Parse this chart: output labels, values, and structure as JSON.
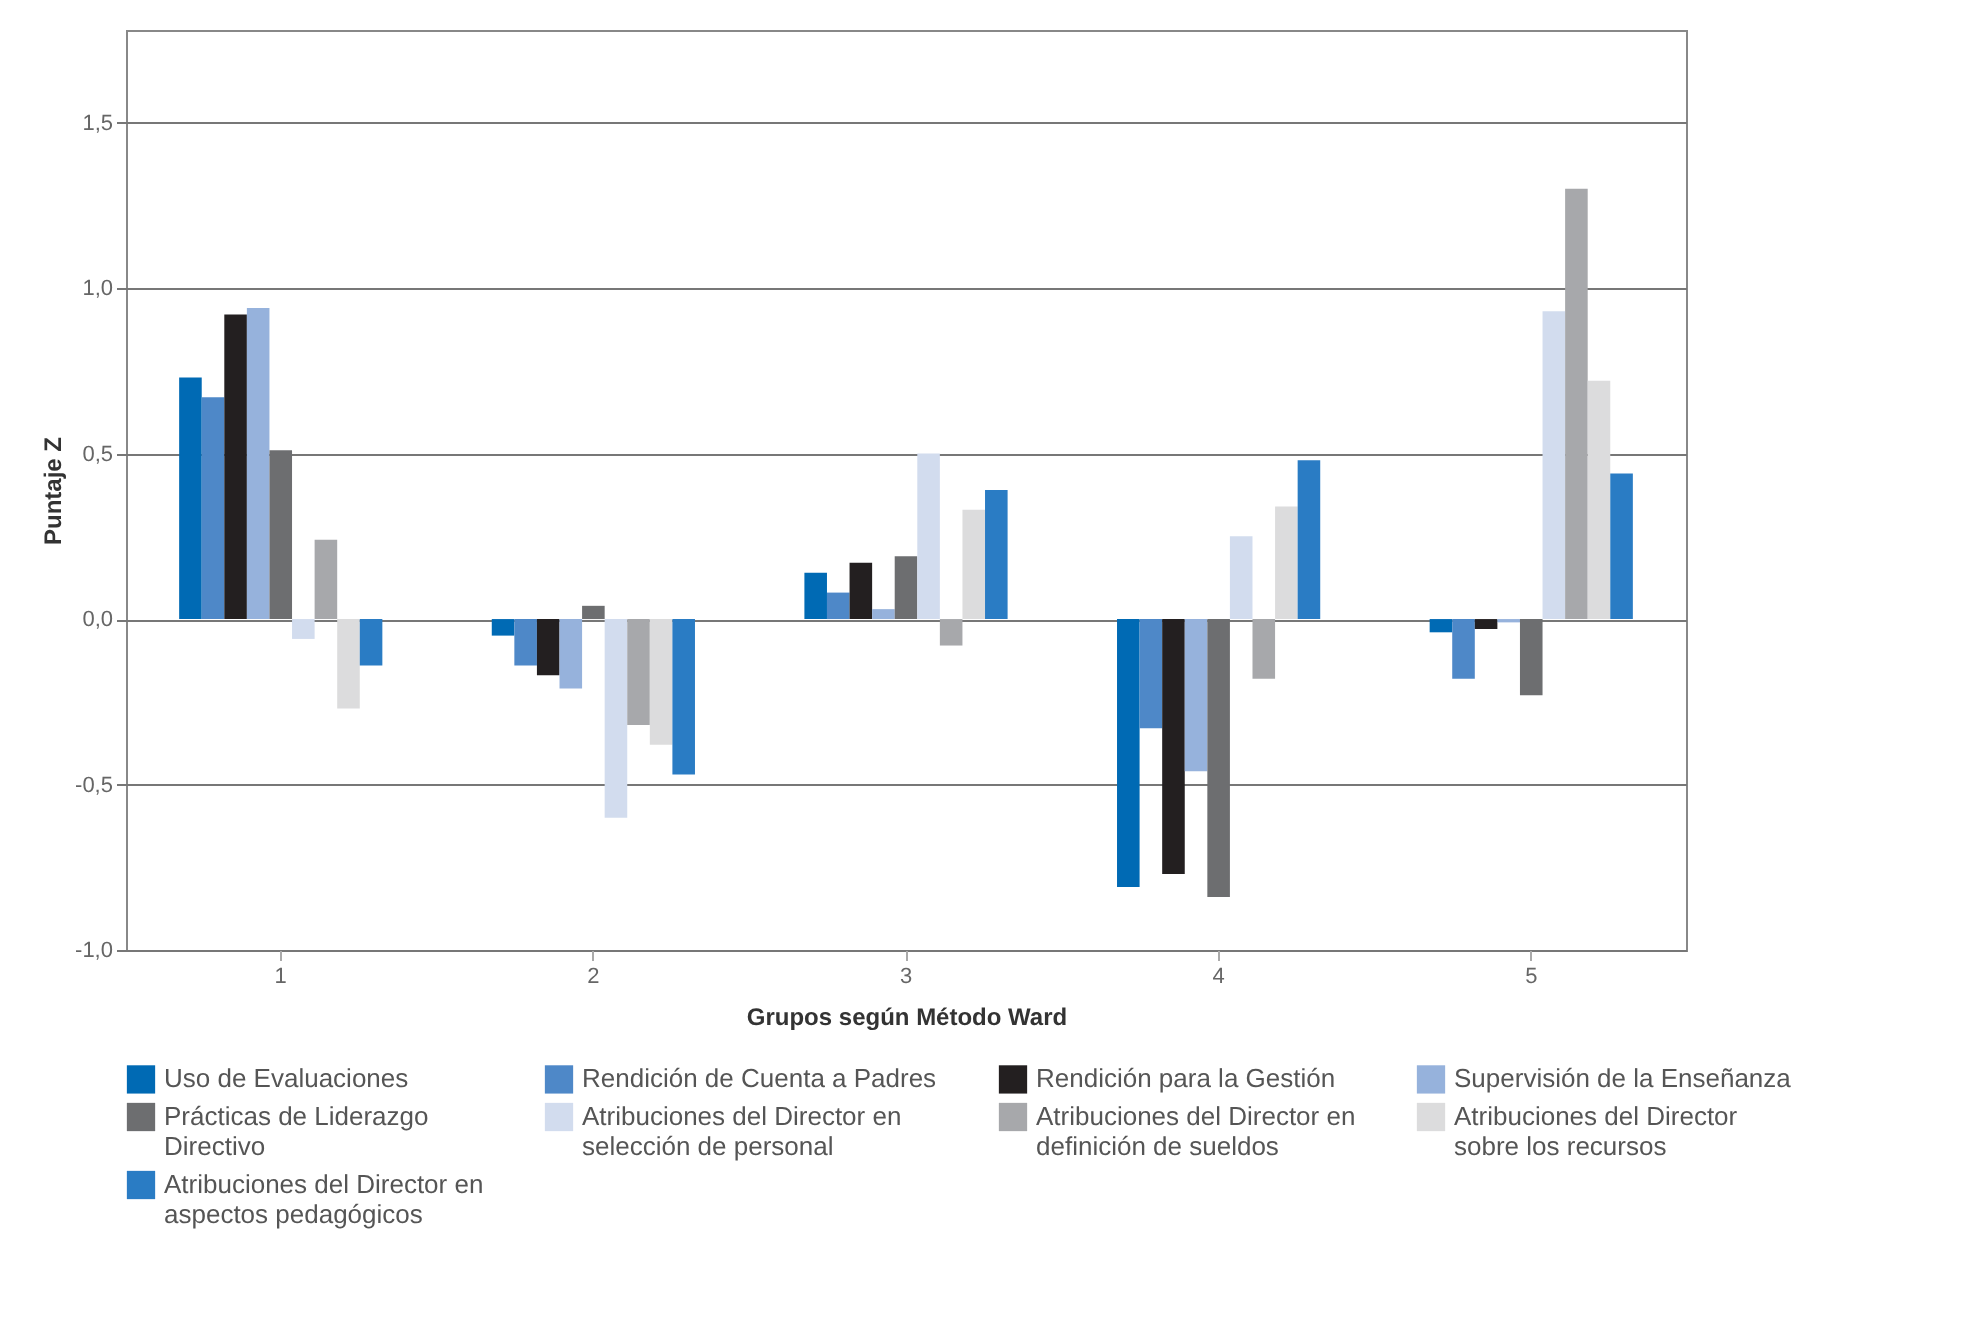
{
  "chart_data": {
    "type": "bar",
    "xlabel": "Grupos según Método Ward",
    "ylabel": "Puntaje Z",
    "categories": [
      "1",
      "2",
      "3",
      "4",
      "5"
    ],
    "ylim": [
      -1.0,
      1.78
    ],
    "yticks": [
      {
        "value": -1.0,
        "label": "-1,0"
      },
      {
        "value": -0.5,
        "label": "-0,5"
      },
      {
        "value": 0,
        "label": "0,0"
      },
      {
        "value": 0.5,
        "label": "0,5"
      },
      {
        "value": 1.0,
        "label": "1,0"
      },
      {
        "value": 1.5,
        "label": "1,5"
      }
    ],
    "grid": "y",
    "legend": "bottom",
    "series": [
      {
        "name": "Uso de Evaluaciones",
        "color": "#006ab4",
        "values": [
          0.73,
          -0.05,
          0.14,
          -0.81,
          -0.04
        ]
      },
      {
        "name": "Rendición de Cuenta a Padres",
        "color": "#4e88c8",
        "values": [
          0.67,
          -0.14,
          0.08,
          -0.33,
          -0.18
        ]
      },
      {
        "name": "Rendición para la Gestión",
        "color": "#231f20",
        "values": [
          0.92,
          -0.17,
          0.17,
          -0.77,
          -0.03
        ]
      },
      {
        "name": "Supervisión de la Enseñanza",
        "color": "#96b2dc",
        "values": [
          0.94,
          -0.21,
          0.03,
          -0.46,
          -0.01
        ]
      },
      {
        "name": "Prácticas de Liderazgo Directivo",
        "color": "#6d6e70",
        "values": [
          0.51,
          0.04,
          0.19,
          -0.84,
          -0.23
        ]
      },
      {
        "name": "Atribuciones del Director en selección de personal",
        "color": "#d2dcee",
        "values": [
          -0.06,
          -0.6,
          0.5,
          0.25,
          0.93
        ]
      },
      {
        "name": "Atribuciones del Director en definición de sueldos",
        "color": "#a7a8ab",
        "values": [
          0.24,
          -0.32,
          -0.08,
          -0.18,
          1.3
        ]
      },
      {
        "name": "Atribuciones del Director sobre los recursos",
        "color": "#dcdcdd",
        "values": [
          -0.27,
          -0.38,
          0.33,
          0.34,
          0.72
        ]
      },
      {
        "name": "Atribuciones del Director en aspectos pedagógicos",
        "color": "#2a7cc4",
        "values": [
          -0.14,
          -0.47,
          0.39,
          0.48,
          0.44
        ]
      }
    ]
  }
}
